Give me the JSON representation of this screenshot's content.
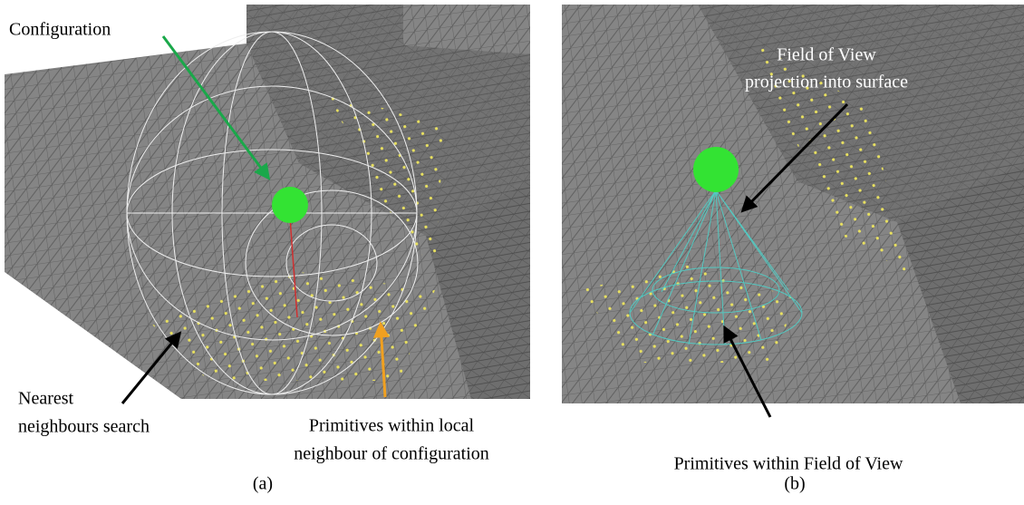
{
  "panels": [
    {
      "caption": "(a)",
      "annotations": [
        {
          "lines": [
            "Configuration"
          ]
        },
        {
          "lines": [
            "Nearest",
            "neighbours search"
          ]
        },
        {
          "lines": [
            "Primitives within local",
            "neighbour of configuration"
          ]
        }
      ]
    },
    {
      "caption": "(b)",
      "annotations": [
        {
          "lines": [
            "Field of View",
            "projection into surface"
          ]
        },
        {
          "lines": [
            "Primitives within Field of View"
          ]
        }
      ]
    }
  ]
}
